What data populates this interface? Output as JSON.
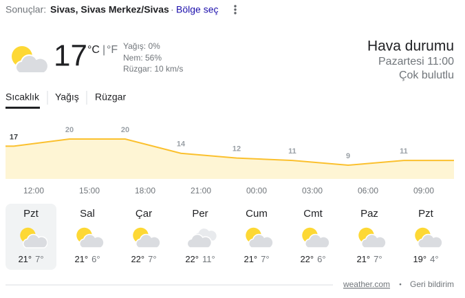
{
  "header": {
    "prefix": "Sonuçlar:",
    "location": "Sivas, Sivas Merkez/Sivas",
    "separator": "·",
    "change": "Bölge seç"
  },
  "current": {
    "temperature": "17",
    "unit_c": "°C",
    "unit_sep": "|",
    "unit_f": "°F",
    "precip": "Yağış: 0%",
    "humidity": "Nem: 56%",
    "wind": "Rüzgar: 10 km/s"
  },
  "title": "Hava durumu",
  "time": "Pazartesi 11:00",
  "condition": "Çok bulutlu",
  "tabs": [
    "Sıcaklık",
    "Yağış",
    "Rüzgar"
  ],
  "chart_data": {
    "type": "area",
    "categories": [
      "12:00",
      "15:00",
      "18:00",
      "21:00",
      "00:00",
      "03:00",
      "06:00",
      "09:00"
    ],
    "values": [
      17,
      20,
      20,
      14,
      12,
      11,
      9,
      11
    ],
    "color": "#fbc02d",
    "fill": "#fef5d4"
  },
  "forecast": [
    {
      "day": "Pzt",
      "high": "21°",
      "low": "7°"
    },
    {
      "day": "Sal",
      "high": "21°",
      "low": "6°"
    },
    {
      "day": "Çar",
      "high": "22°",
      "low": "7°"
    },
    {
      "day": "Per",
      "high": "22°",
      "low": "11°"
    },
    {
      "day": "Cum",
      "high": "21°",
      "low": "7°"
    },
    {
      "day": "Cmt",
      "high": "22°",
      "low": "6°"
    },
    {
      "day": "Paz",
      "high": "21°",
      "low": "7°"
    },
    {
      "day": "Pzt",
      "high": "19°",
      "low": "4°"
    }
  ],
  "footer": {
    "source": "weather.com",
    "separator": "•",
    "feedback": "Geri bildirim"
  }
}
